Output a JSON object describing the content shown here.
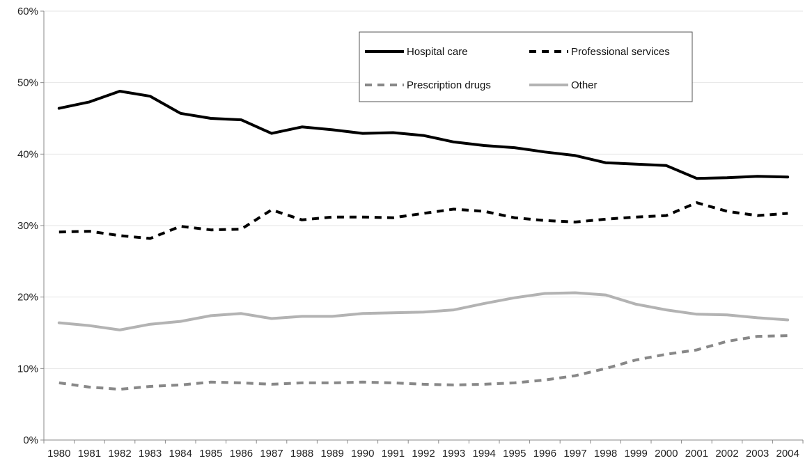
{
  "chart_data": {
    "type": "line",
    "title": "",
    "xlabel": "",
    "ylabel": "",
    "x": [
      "1980",
      "1981",
      "1982",
      "1983",
      "1984",
      "1985",
      "1986",
      "1987",
      "1988",
      "1989",
      "1990",
      "1991",
      "1992",
      "1993",
      "1994",
      "1995",
      "1996",
      "1997",
      "1998",
      "1999",
      "2000",
      "2001",
      "2002",
      "2003",
      "2004"
    ],
    "ylim": [
      0,
      60
    ],
    "y_ticks": [
      "0%",
      "10%",
      "20%",
      "30%",
      "40%",
      "50%",
      "60%"
    ],
    "y_tick_values": [
      0,
      10,
      20,
      30,
      40,
      50,
      60
    ],
    "grid": "horizontal, light",
    "legend_position": "top-right",
    "series": [
      {
        "name": "Hospital care",
        "color": "#000000",
        "style": "solid",
        "values": [
          46.4,
          47.3,
          48.8,
          48.1,
          45.7,
          45.0,
          44.8,
          42.9,
          43.8,
          43.4,
          42.9,
          43.0,
          42.6,
          41.7,
          41.2,
          40.9,
          40.3,
          39.8,
          38.8,
          38.6,
          38.4,
          36.6,
          36.7,
          36.9,
          36.8
        ]
      },
      {
        "name": "Professional services",
        "color": "#000000",
        "style": "dashed",
        "values": [
          29.1,
          29.2,
          28.6,
          28.2,
          29.9,
          29.4,
          29.5,
          32.2,
          30.8,
          31.2,
          31.2,
          31.1,
          31.7,
          32.3,
          32.0,
          31.1,
          30.7,
          30.5,
          30.9,
          31.2,
          31.4,
          33.2,
          32.0,
          31.4,
          31.7
        ]
      },
      {
        "name": "Prescription drugs",
        "color": "#888888",
        "style": "dashed",
        "values": [
          8.0,
          7.4,
          7.1,
          7.5,
          7.7,
          8.1,
          8.0,
          7.8,
          8.0,
          8.0,
          8.1,
          8.0,
          7.8,
          7.7,
          7.8,
          8.0,
          8.4,
          9.0,
          10.0,
          11.2,
          12.0,
          12.6,
          13.8,
          14.5,
          14.6
        ]
      },
      {
        "name": "Other",
        "color": "#b3b3b3",
        "style": "solid",
        "values": [
          16.4,
          16.0,
          15.4,
          16.2,
          16.6,
          17.4,
          17.7,
          17.0,
          17.3,
          17.3,
          17.7,
          17.8,
          17.9,
          18.2,
          19.1,
          19.9,
          20.5,
          20.6,
          20.3,
          19.0,
          18.2,
          17.6,
          17.5,
          17.1,
          16.8
        ]
      }
    ]
  }
}
